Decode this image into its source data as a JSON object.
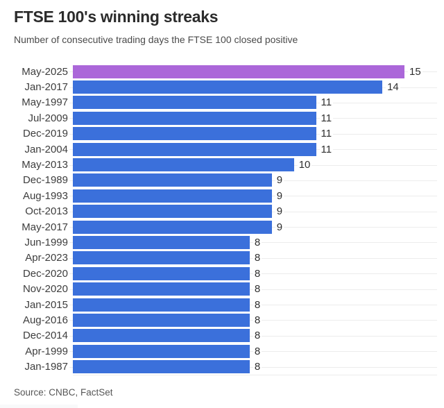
{
  "header": {
    "title": "FTSE 100's winning streaks",
    "subtitle": "Number of consecutive trading days the FTSE 100 closed positive"
  },
  "footer": {
    "source": "Source: CNBC, FactSet"
  },
  "chart_data": {
    "type": "bar",
    "orientation": "horizontal",
    "title": "FTSE 100's winning streaks",
    "subtitle": "Number of consecutive trading days the FTSE 100 closed positive",
    "xlabel": "",
    "ylabel": "",
    "xlim": [
      0,
      15
    ],
    "grid": "row-center-lines",
    "value_labels": true,
    "categories": [
      "May-2025",
      "Jan-2017",
      "May-1997",
      "Jul-2009",
      "Dec-2019",
      "Jan-2004",
      "May-2013",
      "Dec-1989",
      "Aug-1993",
      "Oct-2013",
      "May-2017",
      "Jun-1999",
      "Apr-2023",
      "Dec-2020",
      "Nov-2020",
      "Jan-2015",
      "Aug-2016",
      "Dec-2014",
      "Apr-1999",
      "Jan-1987"
    ],
    "values": [
      15,
      14,
      11,
      11,
      11,
      11,
      10,
      9,
      9,
      9,
      9,
      8,
      8,
      8,
      8,
      8,
      8,
      8,
      8,
      8
    ],
    "highlight_index": 0,
    "colors": {
      "bar": "#3B70DB",
      "highlight_bar": "#AB67D9",
      "gridline": "#ECECEC",
      "title_text": "#2B2B2B",
      "subtitle_text": "#4A4A4A",
      "label_text": "#3D3D3D",
      "source_text": "#565656"
    }
  }
}
